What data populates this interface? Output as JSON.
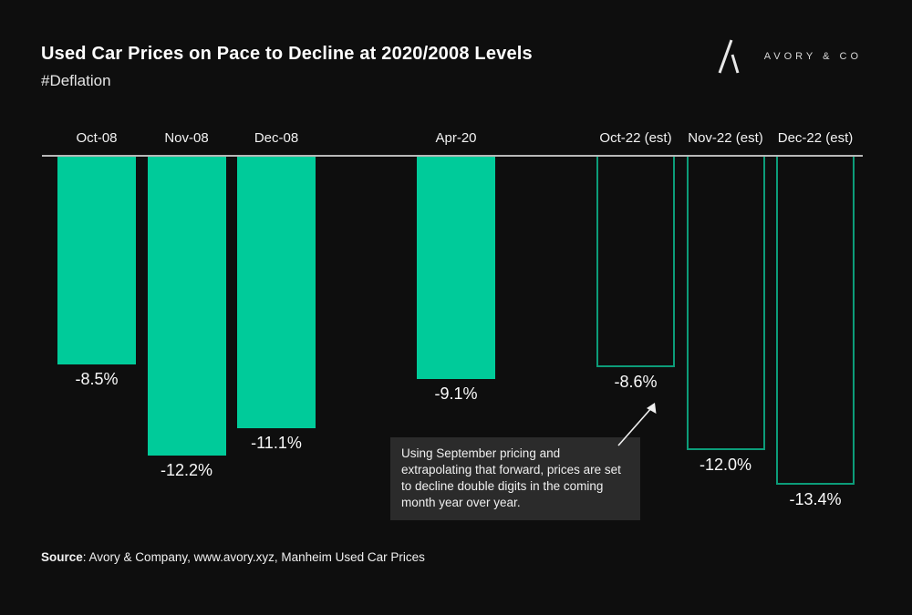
{
  "header": {
    "title": "Used Car Prices on Pace to Decline at 2020/2008 Levels",
    "subtitle": "#Deflation",
    "brand": {
      "name": "AVORY & CO",
      "logo_icon": "avory-mark-icon"
    }
  },
  "chart_data": {
    "type": "bar",
    "title": "Used Car Prices on Pace to Decline at 2020/2008 Levels",
    "orientation": "vertical-downward",
    "categories": [
      "Oct-08",
      "Nov-08",
      "Dec-08",
      "Apr-20",
      "Oct-22 (est)",
      "Nov-22 (est)",
      "Dec-22 (est)"
    ],
    "values": [
      -8.5,
      -12.2,
      -11.1,
      -9.1,
      -8.6,
      -12.0,
      -13.4
    ],
    "value_labels": [
      "-8.5%",
      "-12.2%",
      "-11.1%",
      "-9.1%",
      "-8.6%",
      "-12.0%",
      "-13.4%"
    ],
    "bar_styles": [
      "filled",
      "filled",
      "filled",
      "filled",
      "outlined",
      "outlined",
      "outlined"
    ],
    "time_slots": [
      0,
      1,
      2,
      4,
      6,
      7,
      8
    ],
    "ylim": [
      -14,
      0
    ],
    "grid": false,
    "legend": false,
    "colors": {
      "bar_fill": "#00cb9a",
      "bar_outline": "#0c9c79",
      "axis_line": "#b8b8b8",
      "background": "#0e0e0e",
      "text": "#f5f5f5",
      "callout_background": "#2b2b2b"
    }
  },
  "annotation": {
    "text": "Using September pricing and extrapolating that forward, prices are set to decline double digits in the coming month year over year.",
    "arrow_points_to": "-8.6%"
  },
  "footer": {
    "source_label": "Source",
    "source_text": ": Avory & Company, www.avory.xyz, Manheim Used Car Prices"
  }
}
